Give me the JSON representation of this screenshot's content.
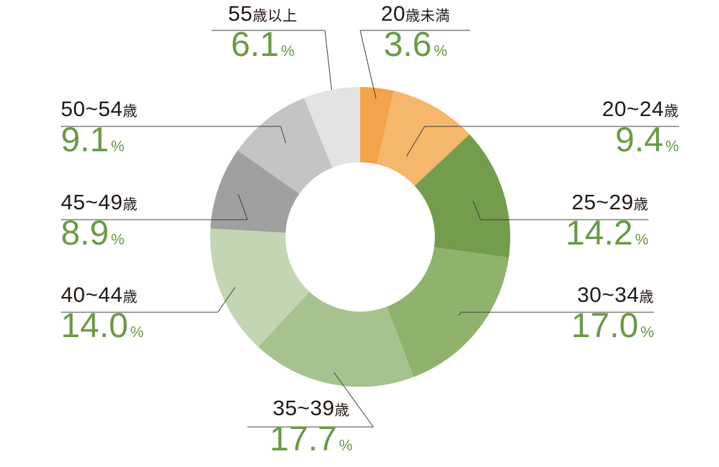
{
  "chart_data": {
    "type": "pie",
    "donut": true,
    "start_angle_deg": 0,
    "direction": "clockwise",
    "percent_sign": "%",
    "slices": [
      {
        "num": "20",
        "suffix": "歳未満",
        "value": 3.6,
        "value_text": "3.6",
        "color": "#f3a349"
      },
      {
        "num": "20~24",
        "suffix": "歳",
        "value": 9.4,
        "value_text": "9.4",
        "color": "#f5b76c"
      },
      {
        "num": "25~29",
        "suffix": "歳",
        "value": 14.2,
        "value_text": "14.2",
        "color": "#739d4c"
      },
      {
        "num": "30~34",
        "suffix": "歳",
        "value": 17.0,
        "value_text": "17.0",
        "color": "#8fb36c"
      },
      {
        "num": "35~39",
        "suffix": "歳",
        "value": 17.7,
        "value_text": "17.7",
        "color": "#a6c38f"
      },
      {
        "num": "40~44",
        "suffix": "歳",
        "value": 14.0,
        "value_text": "14.0",
        "color": "#c3d6b4"
      },
      {
        "num": "45~49",
        "suffix": "歳",
        "value": 8.9,
        "value_text": "8.9",
        "color": "#a0a0a0"
      },
      {
        "num": "50~54",
        "suffix": "歳",
        "value": 9.1,
        "value_text": "9.1",
        "color": "#c4c4c4"
      },
      {
        "num": "55",
        "suffix": "歳以上",
        "value": 6.1,
        "value_text": "6.1",
        "color": "#e3e3e3"
      }
    ]
  }
}
